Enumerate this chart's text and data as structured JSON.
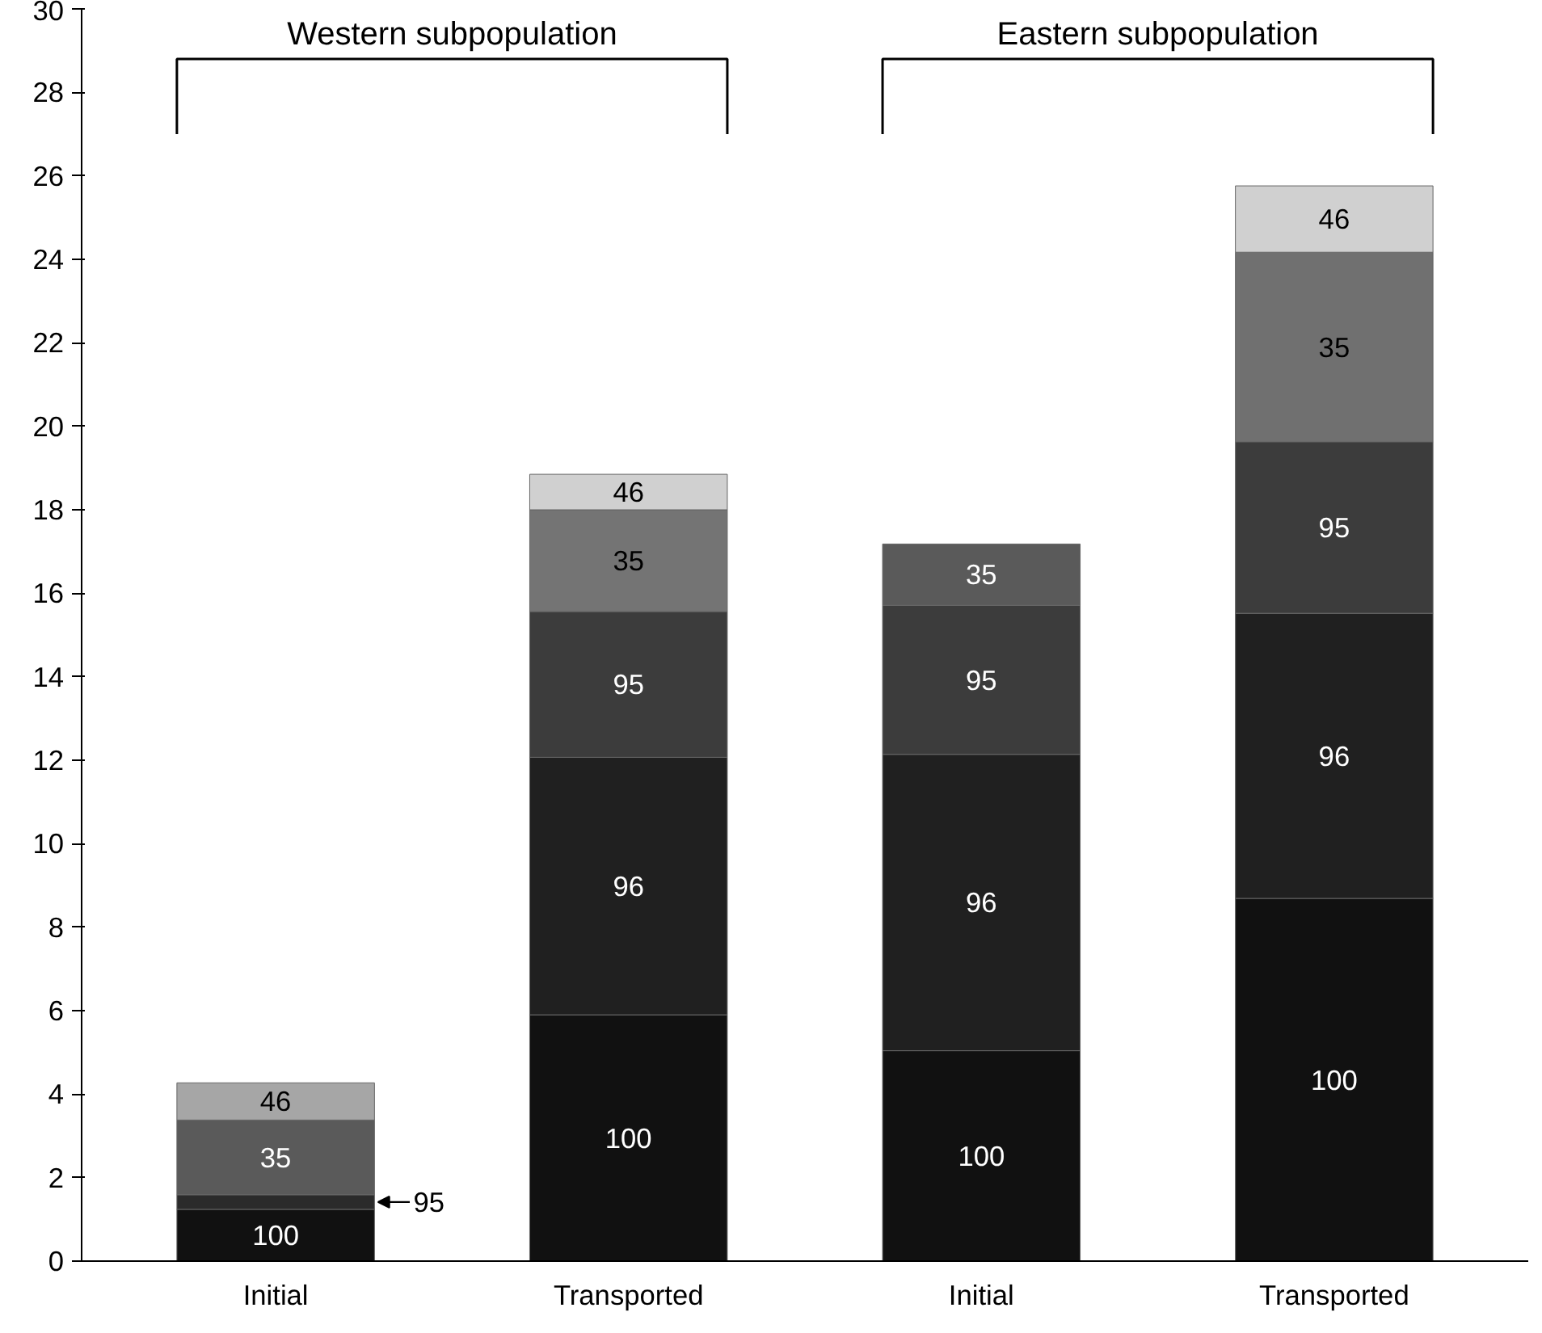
{
  "chart_data": {
    "type": "bar",
    "stacked": true,
    "categories": [
      "Initial",
      "Transported",
      "Initial",
      "Transported"
    ],
    "series": [
      {
        "name": "100",
        "colors": [
          "#111111",
          "#111111",
          "#111111",
          "#111111"
        ],
        "values": [
          1.24,
          5.9,
          5.04,
          8.69
        ]
      },
      {
        "name": "95",
        "colors": [
          "#2b2b2b",
          "#3c3c3c",
          "#3c3c3c",
          "#3c3c3c"
        ],
        "values": [
          0.35,
          null,
          null,
          null
        ]
      },
      {
        "name": "96",
        "colors": [
          "#202020",
          "#202020",
          "#202020",
          "#202020"
        ],
        "values": [
          null,
          6.17,
          7.1,
          6.83
        ]
      },
      {
        "name": "95",
        "colors": [
          "#3c3c3c",
          "#3c3c3c",
          "#3c3c3c",
          "#3c3c3c"
        ],
        "values": [
          null,
          3.49,
          3.57,
          4.11
        ]
      },
      {
        "name": "35",
        "colors": [
          "#5a5a5a",
          "#747474",
          "#5a5a5a",
          "#707070"
        ],
        "values": [
          1.79,
          2.44,
          1.47,
          4.54
        ]
      },
      {
        "name": "46",
        "colors": [
          "#a6a6a6",
          "#d0d0d0",
          "#d0d0d0",
          "#d0d0d0"
        ],
        "values": [
          0.89,
          0.85,
          null,
          1.59
        ]
      }
    ],
    "ylim": [
      0,
      30
    ],
    "yticks": [
      0,
      2,
      4,
      6,
      8,
      10,
      12,
      14,
      16,
      18,
      20,
      22,
      24,
      26,
      28,
      30
    ],
    "annotations": [
      "Western subpopulation",
      "Eastern subpopulation"
    ],
    "grid": false
  }
}
